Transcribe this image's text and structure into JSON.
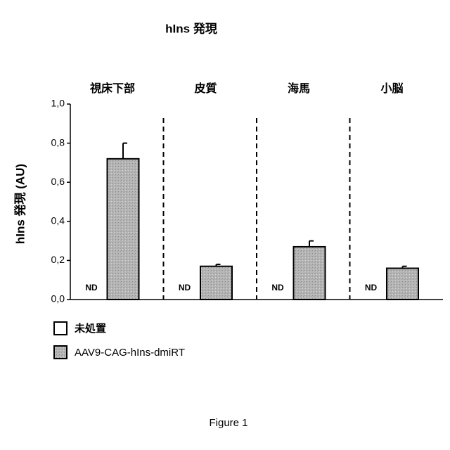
{
  "chart_data": {
    "type": "bar",
    "title": "hIns 発現",
    "y_label": "hIns 発現 (AU)",
    "categories": [
      "視床下部",
      "皮質",
      "海馬",
      "小脳"
    ],
    "series": [
      {
        "name": "未処置",
        "color": "#ffffff",
        "values": [
          null,
          null,
          null,
          null
        ],
        "value_labels": [
          "ND",
          "ND",
          "ND",
          "ND"
        ]
      },
      {
        "name": "AAV9-CAG-hIns-dmiRT",
        "color": "#b5b5b5",
        "values": [
          0.72,
          0.17,
          0.27,
          0.16
        ],
        "errors": [
          0.08,
          0.01,
          0.03,
          0.01
        ]
      }
    ],
    "ylim": [
      0,
      1.0
    ],
    "yticks": [
      {
        "value": 0,
        "label": "0,0"
      },
      {
        "value": 0.2,
        "label": "0,2"
      },
      {
        "value": 0.4,
        "label": "0,4"
      },
      {
        "value": 0.6,
        "label": "0,6"
      },
      {
        "value": 0.8,
        "label": "0,8"
      },
      {
        "value": 1.0,
        "label": "1,0"
      }
    ],
    "grid": false,
    "legend": "bottom-left"
  },
  "caption": "Figure 1"
}
